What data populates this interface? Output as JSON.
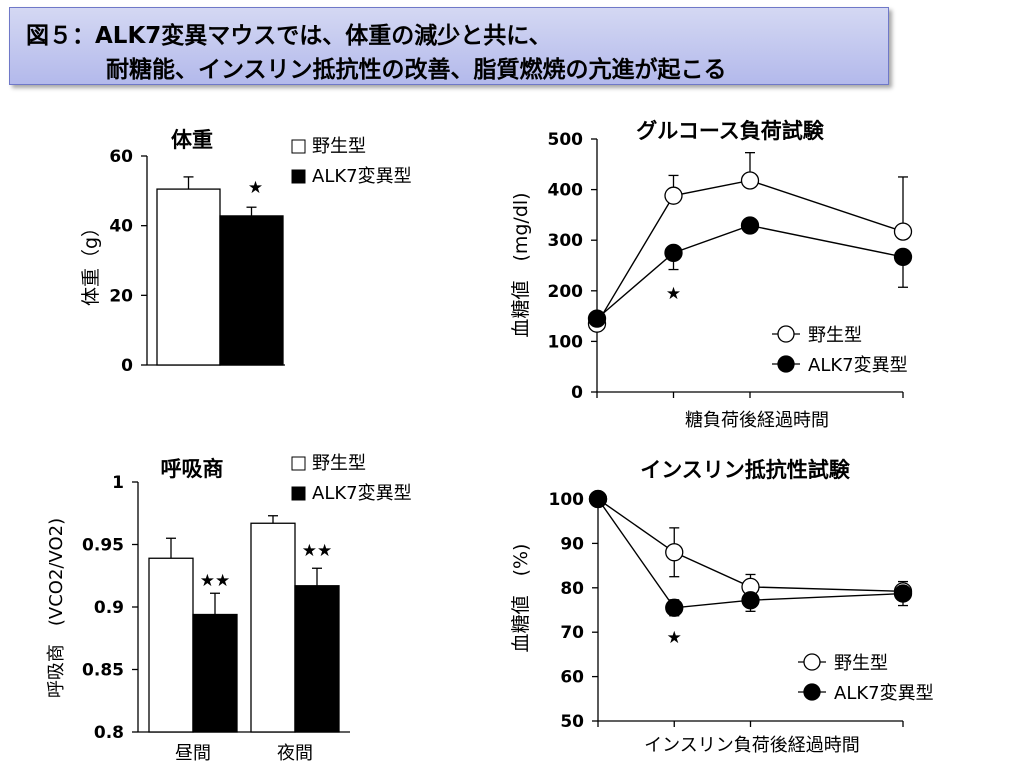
{
  "title": {
    "line1": "図５：ALK7変異マウスでは、体重の減少と共に、",
    "line2": "耐糖能、インスリン抵抗性の改善、脂質燃焼の亢進が起こる"
  },
  "colors": {
    "wild": "#ffffff",
    "mutant": "#000000",
    "title_bg": "#b3b9eb"
  },
  "chart_data": [
    {
      "type": "bar",
      "title": "体重",
      "ylabel": "体重（g）",
      "ylim": [
        0,
        60
      ],
      "yticks": [
        "0",
        "20",
        "40",
        "60"
      ],
      "categories": [
        ""
      ],
      "series": [
        {
          "name": "野生型",
          "values": [
            50.5
          ],
          "errors": [
            3.5
          ]
        },
        {
          "name": "ALK7変異型",
          "values": [
            42.8
          ],
          "errors": [
            2.5
          ]
        }
      ],
      "annotations": [
        {
          "text": "★",
          "series": "ALK7変異型",
          "category_index": 0
        }
      ],
      "legend_position": "top-right"
    },
    {
      "type": "line",
      "title": "グルコース負荷試験",
      "xlabel": "糖負荷後経過時間",
      "ylabel": "血糖値　(mg/dl)",
      "ylim": [
        0,
        500
      ],
      "yticks": [
        "0",
        "100",
        "200",
        "300",
        "400",
        "500"
      ],
      "x": [
        0,
        15,
        30,
        60
      ],
      "series": [
        {
          "name": "野生型",
          "values": [
            135,
            388,
            418,
            317
          ],
          "errors": [
            5,
            40,
            55,
            108
          ]
        },
        {
          "name": "ALK7変異型",
          "values": [
            145,
            275,
            329,
            267
          ],
          "errors": [
            5,
            33,
            8,
            60
          ]
        }
      ],
      "annotations": [
        {
          "text": "★",
          "x": 15
        }
      ],
      "legend_position": "bottom-right"
    },
    {
      "type": "bar",
      "title": "呼吸商",
      "ylabel": "呼吸商　(VCO2/VO2)",
      "ylim": [
        0.8,
        1
      ],
      "yticks": [
        "0.8",
        "0.85",
        "0.9",
        "0.95",
        "1"
      ],
      "categories": [
        "昼間",
        "夜間"
      ],
      "series": [
        {
          "name": "野生型",
          "values": [
            0.939,
            0.967
          ],
          "errors": [
            0.016,
            0.006
          ]
        },
        {
          "name": "ALK7変異型",
          "values": [
            0.894,
            0.917
          ],
          "errors": [
            0.017,
            0.014
          ]
        }
      ],
      "annotations": [
        {
          "text": "★★",
          "series": "ALK7変異型",
          "category_index": 0
        },
        {
          "text": "★★",
          "series": "ALK7変異型",
          "category_index": 1
        }
      ],
      "legend_position": "top-right"
    },
    {
      "type": "line",
      "title": "インスリン抵抗性試験",
      "xlabel": "インスリン負荷後経過時間",
      "ylabel": "血糖値　(%)",
      "ylim": [
        50,
        100
      ],
      "yticks": [
        "50",
        "60",
        "70",
        "80",
        "90",
        "100"
      ],
      "x": [
        0,
        15,
        30,
        60
      ],
      "series": [
        {
          "name": "野生型",
          "values": [
            100,
            88,
            80.2,
            79.2
          ],
          "errors": [
            0.3,
            5.5,
            2.8,
            1.2
          ]
        },
        {
          "name": "ALK7変異型",
          "values": [
            100,
            75.5,
            77.2,
            78.7
          ],
          "errors": [
            0.3,
            1.8,
            2.5,
            2.7
          ]
        }
      ],
      "annotations": [
        {
          "text": "★",
          "x": 15
        }
      ],
      "legend_position": "bottom-right"
    }
  ]
}
